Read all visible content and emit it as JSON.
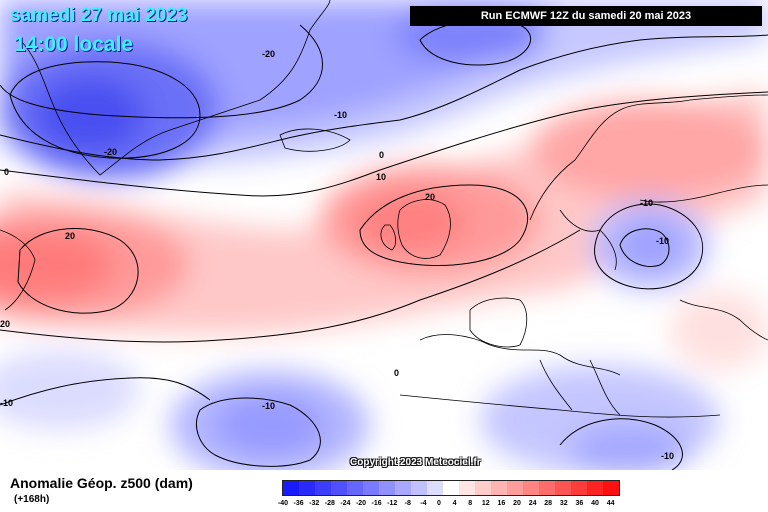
{
  "header": {
    "date": "samedi 27 mai 2023",
    "time": "14:00 locale",
    "run": "Run ECMWF 12Z du samedi 20 mai 2023"
  },
  "map": {
    "copyright": "Copyright 2023 Meteociel.fr",
    "contour_labels": [
      "-20",
      "-20",
      "-10",
      "0",
      "10",
      "20",
      "0",
      "20",
      "-10",
      "20",
      "-10",
      "-10",
      "0",
      "-10",
      "-10"
    ]
  },
  "footer": {
    "title": "Anomalie Géop. z500 (dam)",
    "subtitle": "(+168h)"
  },
  "scale": {
    "labels": [
      "-40",
      "-36",
      "-32",
      "-28",
      "-24",
      "-20",
      "-16",
      "-12",
      "-8",
      "-4",
      "0",
      "4",
      "8",
      "12",
      "16",
      "20",
      "24",
      "28",
      "32",
      "36",
      "40",
      "44"
    ],
    "colors": [
      "#1a1aff",
      "#2a2aff",
      "#3d3dff",
      "#5050ff",
      "#6666ff",
      "#7a7aff",
      "#9090ff",
      "#a8a8ff",
      "#c0c0ff",
      "#dcdcff",
      "#ffffff",
      "#ffe4e4",
      "#ffcccc",
      "#ffb4b4",
      "#ff9c9c",
      "#ff8484",
      "#ff6c6c",
      "#ff5454",
      "#ff3c3c",
      "#ff2424",
      "#ff1010"
    ]
  }
}
